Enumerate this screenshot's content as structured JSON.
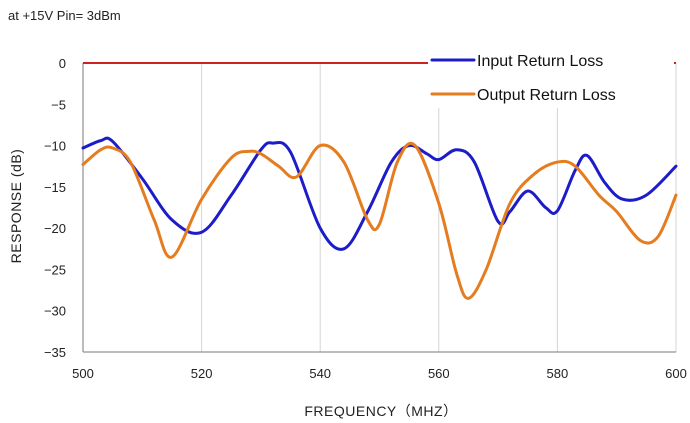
{
  "chart_data": {
    "type": "line",
    "title": "at +15V Pin= 3dBm",
    "xlabel": "FREQUENCY（MHZ）",
    "ylabel": "RESPONSE (dB)",
    "xlim": [
      500,
      600
    ],
    "ylim": [
      -35,
      0
    ],
    "xticks": [
      500,
      520,
      540,
      560,
      580,
      600
    ],
    "yticks": [
      0,
      -5,
      -10,
      -15,
      -20,
      -25,
      -30,
      -35
    ],
    "grid": "vertical",
    "legend_position": "top-right",
    "reference_line": {
      "y": 0,
      "color": "#cc2222"
    },
    "series": [
      {
        "name": "Input   Return Loss",
        "color": "#1c1cc8",
        "x": [
          500,
          503,
          505,
          510,
          515,
          520,
          525,
          530,
          532,
          535,
          540,
          544,
          548,
          552,
          555,
          558,
          560,
          563,
          566,
          570,
          572,
          575,
          578,
          580,
          583,
          585,
          588,
          591,
          595,
          600
        ],
        "y": [
          -10.3,
          -9.4,
          -9.5,
          -14,
          -19,
          -20.5,
          -16,
          -10.5,
          -9.7,
          -10.8,
          -20,
          -22.5,
          -18,
          -12,
          -10,
          -11,
          -11.7,
          -10.5,
          -12,
          -19.2,
          -18,
          -15.5,
          -17.5,
          -17.9,
          -13,
          -11.2,
          -14.5,
          -16.5,
          -16,
          -12.5
        ]
      },
      {
        "name": "Output Return Loss",
        "color": "#e57c1f",
        "x": [
          500,
          503,
          505,
          508,
          512,
          515,
          520,
          525,
          528,
          530,
          533,
          536,
          540,
          544,
          548,
          550,
          553,
          556,
          560,
          563,
          565,
          568,
          572,
          576,
          580,
          583,
          587,
          590,
          594,
          597,
          600
        ],
        "y": [
          -12.3,
          -10.5,
          -10.3,
          -12,
          -19,
          -23.5,
          -16.5,
          -11.5,
          -10.7,
          -11,
          -12.5,
          -13.8,
          -10,
          -12,
          -19,
          -19.5,
          -12,
          -10,
          -17,
          -25.5,
          -28.5,
          -25,
          -17,
          -13.5,
          -12,
          -12.5,
          -16,
          -18,
          -21.5,
          -21,
          -16
        ]
      }
    ]
  }
}
